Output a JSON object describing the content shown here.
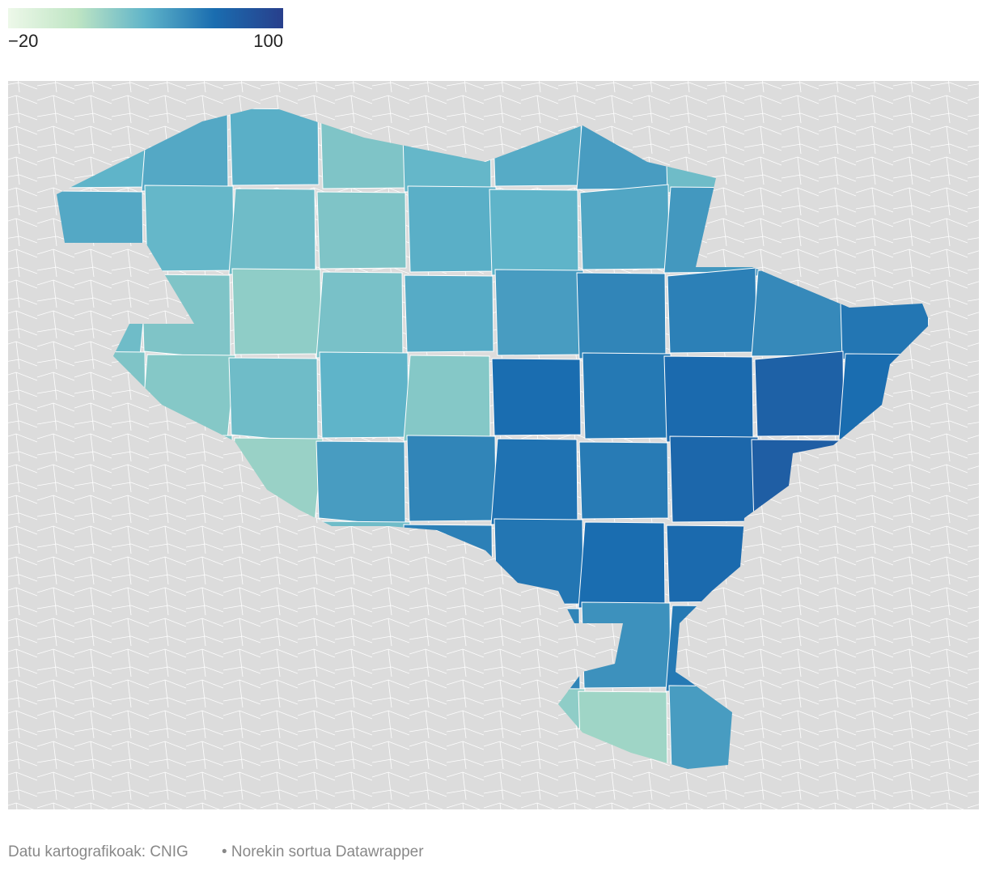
{
  "legend": {
    "colors": [
      "#edf8e9",
      "#bfe5c4",
      "#5fb4c9",
      "#1a6db0",
      "#283f8c"
    ],
    "ticks": [
      {
        "value": -20,
        "label": "−20"
      },
      100
    ]
  },
  "map": {
    "values": [
      40,
      45,
      42,
      30,
      38,
      44,
      50,
      35,
      48,
      40,
      45,
      38,
      35,
      30,
      42,
      40,
      46,
      52,
      55,
      42,
      35,
      30,
      25,
      32,
      44,
      50,
      60,
      62,
      58,
      66,
      30,
      28,
      35,
      40,
      28,
      70,
      65,
      72,
      78,
      70,
      25,
      30,
      22,
      50,
      60,
      68,
      64,
      74,
      80,
      62,
      20,
      24,
      28,
      35,
      62,
      66,
      70,
      72,
      60,
      55,
      30,
      32,
      25,
      40,
      58,
      60,
      55,
      65,
      52,
      48,
      20,
      30,
      35,
      38,
      45,
      25,
      20,
      50,
      55,
      45
    ]
  },
  "footer": {
    "source": "Datu kartografikoak: CNIG",
    "credit": "• Norekin sortua Datawrapper"
  }
}
